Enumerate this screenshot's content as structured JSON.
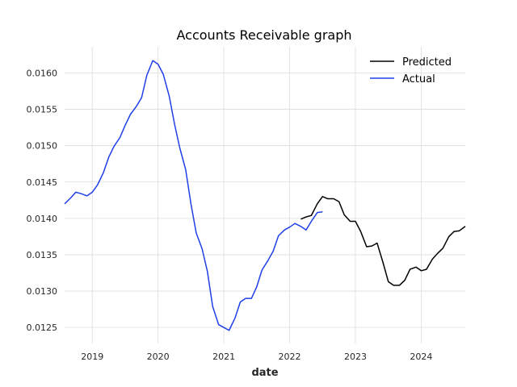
{
  "chart_data": {
    "type": "line",
    "title": "Accounts Receivable graph",
    "xlabel": "date",
    "ylabel": "",
    "xlim": [
      2018.58,
      2024.67
    ],
    "ylim": [
      0.01228,
      0.01636
    ],
    "x_ticks": [
      2019,
      2020,
      2021,
      2022,
      2023,
      2024
    ],
    "x_tick_labels": [
      "2019",
      "2020",
      "2021",
      "2022",
      "2023",
      "2024"
    ],
    "y_ticks": [
      0.0125,
      0.013,
      0.0135,
      0.014,
      0.0145,
      0.015,
      0.0155,
      0.016
    ],
    "y_tick_labels": [
      "0.0125",
      "0.0130",
      "0.0135",
      "0.0140",
      "0.0145",
      "0.0150",
      "0.0155",
      "0.0160"
    ],
    "grid": true,
    "legend_position": "top-right",
    "series": [
      {
        "name": "Predicted",
        "color": "#000000",
        "x": [
          2022.17,
          2022.25,
          2022.33,
          2022.42,
          2022.5,
          2022.58,
          2022.67,
          2022.75,
          2022.83,
          2022.92,
          2023.0,
          2023.08,
          2023.17,
          2023.25,
          2023.33,
          2023.42,
          2023.5,
          2023.58,
          2023.67,
          2023.75,
          2023.83,
          2023.92,
          2024.0,
          2024.08,
          2024.17,
          2024.25,
          2024.33,
          2024.42,
          2024.5,
          2024.58,
          2024.67
        ],
        "y": [
          0.01399,
          0.01402,
          0.01404,
          0.0142,
          0.0143,
          0.01427,
          0.01427,
          0.01423,
          0.01405,
          0.01396,
          0.01396,
          0.01382,
          0.01361,
          0.01362,
          0.01366,
          0.01339,
          0.01313,
          0.01308,
          0.01308,
          0.01315,
          0.0133,
          0.01333,
          0.01328,
          0.0133,
          0.01344,
          0.01352,
          0.01359,
          0.01375,
          0.01382,
          0.01383,
          0.01389
        ]
      },
      {
        "name": "Actual",
        "color": "#1f3fe8",
        "x": [
          2018.58,
          2018.67,
          2018.75,
          2018.83,
          2018.92,
          2019.0,
          2019.08,
          2019.17,
          2019.25,
          2019.33,
          2019.42,
          2019.5,
          2019.58,
          2019.67,
          2019.75,
          2019.83,
          2019.92,
          2020.0,
          2020.08,
          2020.17,
          2020.25,
          2020.33,
          2020.42,
          2020.5,
          2020.58,
          2020.67,
          2020.75,
          2020.83,
          2020.92,
          2021.0,
          2021.08,
          2021.17,
          2021.25,
          2021.33,
          2021.42,
          2021.5,
          2021.58,
          2021.67,
          2021.75,
          2021.83,
          2021.92,
          2022.0,
          2022.08,
          2022.17,
          2022.25,
          2022.33,
          2022.42,
          2022.5
        ],
        "y": [
          0.0142,
          0.01428,
          0.01436,
          0.01434,
          0.01431,
          0.01436,
          0.01446,
          0.01463,
          0.01484,
          0.01499,
          0.01511,
          0.01528,
          0.01543,
          0.01554,
          0.01566,
          0.01597,
          0.01617,
          0.01612,
          0.01598,
          0.01568,
          0.0153,
          0.01497,
          0.01467,
          0.0142,
          0.0138,
          0.01358,
          0.01327,
          0.01279,
          0.01254,
          0.0125,
          0.01246,
          0.01263,
          0.01285,
          0.0129,
          0.0129,
          0.01306,
          0.01329,
          0.01342,
          0.01355,
          0.01376,
          0.01384,
          0.01388,
          0.01393,
          0.01389,
          0.01384,
          0.01396,
          0.01408,
          0.01409
        ]
      }
    ]
  }
}
